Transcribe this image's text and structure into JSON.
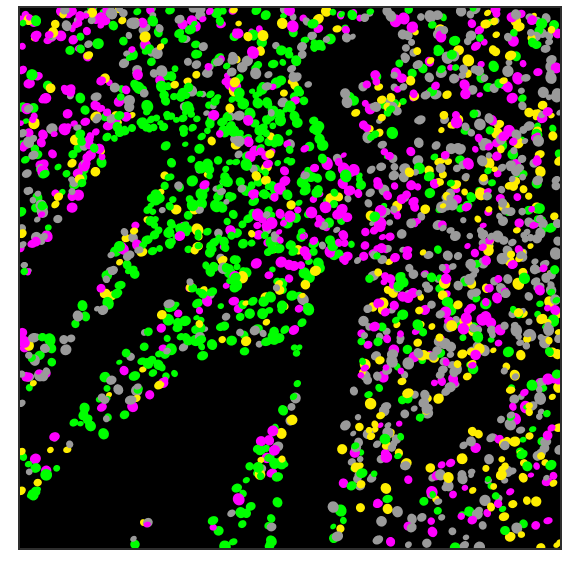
{
  "image": {
    "background_color": "#000000",
    "frame_color": "#2e2e2e",
    "cell_colors": {
      "green": "#00ff00",
      "magenta": "#ff00ff",
      "yellow": "#ffee00",
      "gray": "#9a9a9a"
    },
    "dominant_regions": [
      {
        "name": "green-dense-center",
        "color": "green"
      },
      {
        "name": "magenta-top-left",
        "color": "magenta"
      },
      {
        "name": "gray-right",
        "color": "gray"
      },
      {
        "name": "yellow-right",
        "color": "yellow"
      }
    ]
  }
}
